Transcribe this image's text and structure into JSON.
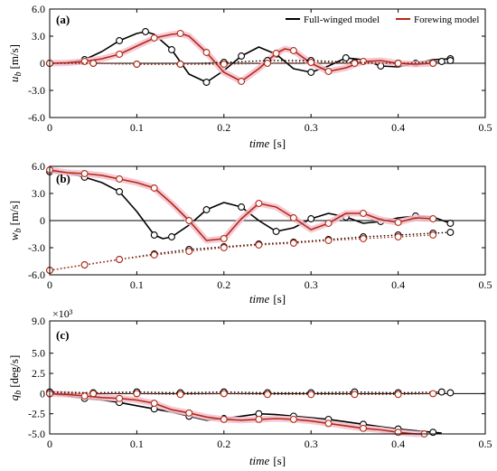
{
  "colors": {
    "full": "#000000",
    "fore": "#b22a14",
    "fore_band": "#f4bfd0",
    "marker_fill": "#ffffff"
  },
  "legend": {
    "full_label": "Full-winged  model",
    "fore_label": "Forewing model"
  },
  "chart_data": [
    {
      "type": "line",
      "panel": "(a)",
      "ylabel_main": "u",
      "ylabel_sub": "b",
      "ylabel_unit": "[m/s]",
      "xlabel_main": "time",
      "xlabel_unit": "[s]",
      "xlim": [
        0,
        0.5
      ],
      "ylim": [
        -6,
        6
      ],
      "xticks": [
        "0",
        "0.1",
        "0.2",
        "0.3",
        "0.4",
        "0.5"
      ],
      "xtick_values": [
        0,
        0.1,
        0.2,
        0.3,
        0.4,
        0.5
      ],
      "yticks": [
        "-6.0",
        "-3.0",
        "0",
        "3.0",
        "6.0"
      ],
      "ytick_values": [
        -6,
        -3,
        0,
        3,
        6
      ],
      "legend_position": "top-right",
      "series": [
        {
          "name": "Full-winged  model",
          "color_key": "full",
          "style": "solid",
          "x": [
            0.0,
            0.02,
            0.04,
            0.06,
            0.08,
            0.1,
            0.11,
            0.12,
            0.14,
            0.16,
            0.18,
            0.2,
            0.22,
            0.24,
            0.26,
            0.28,
            0.3,
            0.32,
            0.34,
            0.36,
            0.38,
            0.4,
            0.42,
            0.44,
            0.46
          ],
          "y": [
            0.0,
            0.1,
            0.4,
            1.3,
            2.5,
            3.3,
            3.5,
            3.2,
            1.5,
            -1.2,
            -2.1,
            -0.8,
            0.8,
            1.8,
            1.0,
            -0.6,
            -1.0,
            -0.3,
            0.6,
            0.4,
            -0.3,
            -0.4,
            0.0,
            0.4,
            0.5
          ]
        },
        {
          "name": "Forewing model",
          "color_key": "fore",
          "style": "solid",
          "band": true,
          "x": [
            0.0,
            0.02,
            0.04,
            0.06,
            0.08,
            0.1,
            0.12,
            0.14,
            0.15,
            0.16,
            0.18,
            0.2,
            0.22,
            0.24,
            0.26,
            0.27,
            0.28,
            0.3,
            0.32,
            0.34,
            0.36,
            0.38,
            0.4,
            0.42,
            0.44
          ],
          "y": [
            0.0,
            0.05,
            0.2,
            0.5,
            1.0,
            1.9,
            2.8,
            3.2,
            3.3,
            3.0,
            1.2,
            -1.0,
            -2.0,
            -0.6,
            1.1,
            1.6,
            1.4,
            0.0,
            -0.9,
            -0.5,
            0.2,
            0.3,
            0.0,
            -0.1,
            0.0
          ]
        },
        {
          "color_key": "full",
          "style": "dotted",
          "x": [
            0.0,
            0.05,
            0.1,
            0.15,
            0.2,
            0.25,
            0.3,
            0.35,
            0.4,
            0.45,
            0.46
          ],
          "y": [
            0.0,
            0.0,
            -0.1,
            -0.1,
            0.1,
            0.3,
            0.3,
            0.1,
            0.0,
            0.2,
            0.3
          ]
        },
        {
          "color_key": "fore",
          "style": "dotted",
          "x": [
            0.0,
            0.05,
            0.1,
            0.15,
            0.2,
            0.25,
            0.3,
            0.35,
            0.4,
            0.44
          ],
          "y": [
            0.0,
            0.0,
            -0.1,
            -0.1,
            -0.1,
            0.0,
            0.1,
            0.0,
            0.0,
            0.0
          ]
        }
      ]
    },
    {
      "type": "line",
      "panel": "(b)",
      "ylabel_main": "w",
      "ylabel_sub": "b",
      "ylabel_unit": "[m/s]",
      "xlabel_main": "time",
      "xlabel_unit": "[s]",
      "xlim": [
        0,
        0.5
      ],
      "ylim": [
        -6,
        6
      ],
      "xticks": [
        "0",
        "0.1",
        "0.2",
        "0.3",
        "0.4",
        "0.5"
      ],
      "xtick_values": [
        0,
        0.1,
        0.2,
        0.3,
        0.4,
        0.5
      ],
      "yticks": [
        "-6.0",
        "-3.0",
        "0",
        "3.0",
        "6.0"
      ],
      "ytick_values": [
        -6,
        -3,
        0,
        3,
        6
      ],
      "series": [
        {
          "name": "Full-winged  model",
          "color_key": "full",
          "style": "solid",
          "x": [
            0.0,
            0.02,
            0.04,
            0.06,
            0.08,
            0.1,
            0.12,
            0.13,
            0.14,
            0.16,
            0.18,
            0.2,
            0.22,
            0.24,
            0.26,
            0.28,
            0.3,
            0.32,
            0.34,
            0.36,
            0.38,
            0.4,
            0.42,
            0.44,
            0.46
          ],
          "y": [
            5.4,
            5.3,
            4.8,
            4.2,
            3.2,
            1.0,
            -1.6,
            -2.0,
            -1.8,
            -0.5,
            1.2,
            2.0,
            1.5,
            0.0,
            -1.2,
            -0.8,
            0.2,
            0.8,
            0.4,
            -0.3,
            -0.1,
            0.3,
            0.5,
            0.4,
            -0.3
          ]
        },
        {
          "name": "Forewing model",
          "color_key": "fore",
          "style": "solid",
          "band": true,
          "x": [
            0.0,
            0.02,
            0.04,
            0.06,
            0.08,
            0.1,
            0.12,
            0.14,
            0.16,
            0.18,
            0.2,
            0.22,
            0.24,
            0.26,
            0.28,
            0.3,
            0.32,
            0.34,
            0.36,
            0.38,
            0.4,
            0.42,
            0.44
          ],
          "y": [
            5.6,
            5.3,
            5.2,
            5.0,
            4.6,
            4.2,
            3.6,
            1.9,
            0.0,
            -2.2,
            -2.0,
            0.2,
            1.9,
            1.5,
            0.3,
            -1.0,
            -0.3,
            0.8,
            0.8,
            0.1,
            -0.2,
            0.3,
            0.2
          ]
        },
        {
          "color_key": "full",
          "style": "dotted",
          "x": [
            0.0,
            0.04,
            0.08,
            0.12,
            0.16,
            0.2,
            0.24,
            0.28,
            0.32,
            0.36,
            0.4,
            0.44,
            0.46
          ],
          "y": [
            -5.5,
            -4.9,
            -4.3,
            -3.7,
            -3.2,
            -2.9,
            -2.6,
            -2.4,
            -2.1,
            -1.8,
            -1.6,
            -1.4,
            -1.3
          ]
        },
        {
          "color_key": "fore",
          "style": "dotted",
          "x": [
            0.0,
            0.04,
            0.08,
            0.12,
            0.16,
            0.2,
            0.24,
            0.28,
            0.32,
            0.36,
            0.4,
            0.44
          ],
          "y": [
            -5.5,
            -4.9,
            -4.3,
            -3.8,
            -3.4,
            -3.0,
            -2.7,
            -2.5,
            -2.2,
            -2.0,
            -1.8,
            -1.6
          ]
        }
      ]
    },
    {
      "type": "line",
      "panel": "(c)",
      "ylabel_main": "q",
      "ylabel_sub": "b",
      "ylabel_unit": "[deg/s]",
      "xlabel_main": "time",
      "xlabel_unit": "[s]",
      "scale_note": "×10³",
      "xlim": [
        0,
        0.5
      ],
      "ylim": [
        -5,
        9
      ],
      "xticks": [
        "0",
        "0.1",
        "0.2",
        "0.3",
        "0.4",
        "0.5"
      ],
      "xtick_values": [
        0,
        0.1,
        0.2,
        0.3,
        0.4,
        0.5
      ],
      "yticks": [
        "-5.0",
        "-2.5",
        "0",
        "2.5",
        "5.0",
        "9.0"
      ],
      "ytick_values": [
        -5,
        -2.5,
        0,
        2.5,
        5,
        9
      ],
      "series": [
        {
          "name": "Full-winged  model",
          "color_key": "full",
          "style": "solid",
          "x": [
            0.0,
            0.02,
            0.04,
            0.06,
            0.08,
            0.1,
            0.12,
            0.14,
            0.16,
            0.18,
            0.2,
            0.22,
            0.24,
            0.26,
            0.28,
            0.3,
            0.32,
            0.34,
            0.36,
            0.38,
            0.4,
            0.42,
            0.44,
            0.45
          ],
          "y": [
            0.0,
            -0.3,
            -0.6,
            -0.8,
            -1.1,
            -1.5,
            -1.9,
            -2.3,
            -2.8,
            -3.3,
            -3.1,
            -2.8,
            -2.5,
            -2.6,
            -2.8,
            -3.0,
            -3.2,
            -3.5,
            -3.8,
            -4.1,
            -4.4,
            -4.6,
            -4.8,
            -4.9
          ]
        },
        {
          "name": "Forewing model",
          "color_key": "fore",
          "style": "solid",
          "band": true,
          "x": [
            0.0,
            0.02,
            0.04,
            0.06,
            0.08,
            0.1,
            0.12,
            0.14,
            0.16,
            0.18,
            0.2,
            0.22,
            0.24,
            0.26,
            0.28,
            0.3,
            0.32,
            0.34,
            0.36,
            0.38,
            0.4,
            0.42,
            0.43
          ],
          "y": [
            0.0,
            -0.1,
            -0.3,
            -0.5,
            -0.6,
            -0.8,
            -1.2,
            -2.0,
            -2.4,
            -2.9,
            -3.2,
            -3.3,
            -3.2,
            -3.1,
            -3.2,
            -3.4,
            -3.7,
            -4.0,
            -4.3,
            -4.5,
            -4.8,
            -5.0,
            -5.0
          ]
        },
        {
          "color_key": "full",
          "style": "dotted",
          "x": [
            0.0,
            0.05,
            0.1,
            0.15,
            0.2,
            0.25,
            0.3,
            0.35,
            0.4,
            0.45,
            0.46
          ],
          "y": [
            0.2,
            0.1,
            0.2,
            0.1,
            0.2,
            0.1,
            0.1,
            0.2,
            0.1,
            0.2,
            0.1
          ]
        },
        {
          "color_key": "fore",
          "style": "dotted",
          "x": [
            0.0,
            0.05,
            0.1,
            0.15,
            0.2,
            0.25,
            0.3,
            0.35,
            0.4,
            0.44
          ],
          "y": [
            0.0,
            0.0,
            0.0,
            -0.1,
            0.0,
            -0.1,
            -0.1,
            -0.1,
            -0.1,
            0.0
          ]
        }
      ]
    }
  ]
}
